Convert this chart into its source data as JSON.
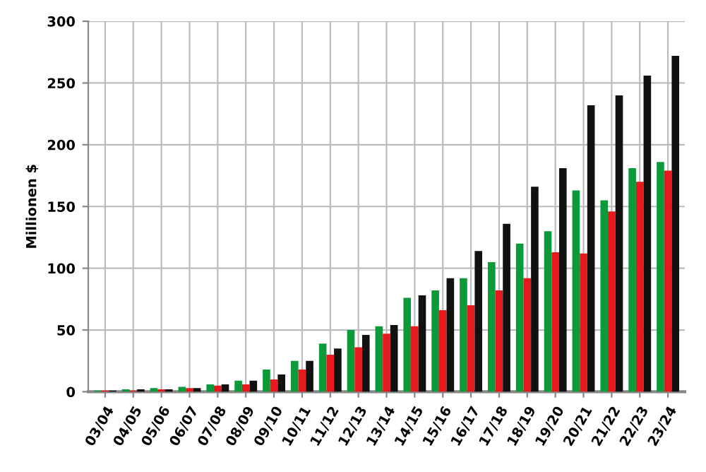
{
  "chart_data": {
    "type": "bar",
    "ylabel": "Millionen $",
    "categories": [
      "03/04",
      "04/05",
      "05/06",
      "06/07",
      "07/08",
      "08/09",
      "09/10",
      "10/11",
      "11/12",
      "12/13",
      "13/14",
      "14/15",
      "15/16",
      "16/17",
      "17/18",
      "18/19",
      "19/20",
      "20/21",
      "21/22",
      "22/23",
      "23/24"
    ],
    "series": [
      {
        "color": "#0a9a3a",
        "values": [
          1,
          2,
          3,
          4,
          6,
          9,
          18,
          25,
          39,
          50,
          53,
          76,
          82,
          92,
          105,
          120,
          130,
          163,
          155,
          181,
          186
        ]
      },
      {
        "color": "#e8191c",
        "values": [
          1,
          1,
          2,
          3,
          5,
          6,
          10,
          18,
          30,
          36,
          47,
          53,
          66,
          70,
          82,
          92,
          113,
          112,
          146,
          170,
          179
        ]
      },
      {
        "color": "#111111",
        "values": [
          1,
          2,
          2,
          3,
          6,
          9,
          14,
          25,
          35,
          46,
          54,
          78,
          92,
          114,
          136,
          166,
          181,
          232,
          240,
          256,
          272
        ]
      }
    ],
    "ylim": [
      0,
      300
    ],
    "yticks": [
      0,
      50,
      100,
      150,
      200,
      250,
      300
    ],
    "grid": true
  }
}
